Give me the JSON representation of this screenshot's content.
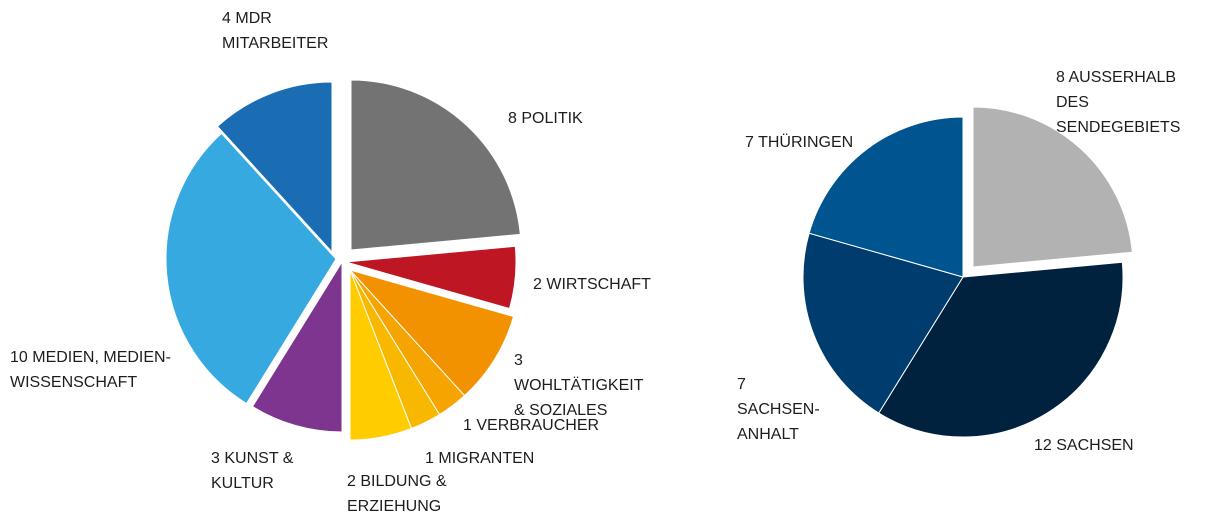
{
  "chart_data": [
    {
      "type": "pie",
      "categories": [
        "POLITIK",
        "WIRTSCHAFT",
        "WOHLTÄTIGKEIT & SOZIALES",
        "VERBRAUCHER",
        "MIGRANTEN",
        "BILDUNG & ERZIEHUNG",
        "KUNST & KULTUR",
        "MEDIEN, MEDIEN-WISSENSCHAFT",
        "MDR MITARBEITER"
      ],
      "values": [
        8,
        2,
        3,
        1,
        1,
        2,
        3,
        10,
        4
      ],
      "colors": [
        "#737373",
        "#be1622",
        "#f39200",
        "#f6a500",
        "#f9b800",
        "#ffcc00",
        "#7d3590",
        "#36a9e1",
        "#1a6db3"
      ]
    },
    {
      "type": "pie",
      "categories": [
        "AUSSERHALB DES SENDEGEBIETS",
        "SACHSEN",
        "SACHSEN-ANHALT",
        "THÜRINGEN"
      ],
      "values": [
        8,
        12,
        7,
        7
      ],
      "colors": [
        "#b2b2b2",
        "#00223f",
        "#003d6e",
        "#00548f"
      ]
    }
  ]
}
